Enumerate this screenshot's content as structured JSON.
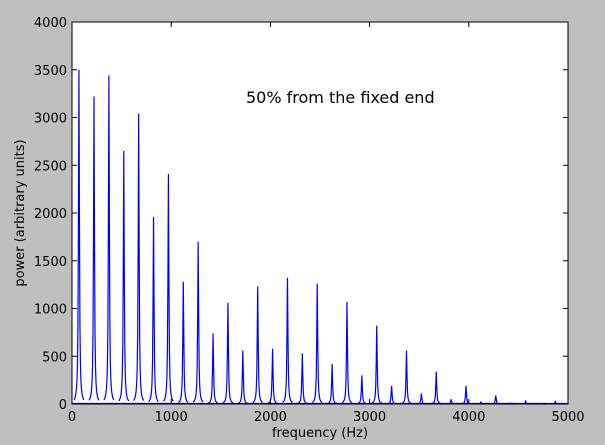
{
  "chart_data": {
    "type": "line",
    "xlabel": "frequency (Hz)",
    "ylabel": "power (arbitrary units)",
    "annotation": "50% from the fixed end",
    "xlim": [
      0,
      5000
    ],
    "ylim": [
      0,
      4000
    ],
    "xticks": [
      0,
      1000,
      2000,
      3000,
      4000,
      5000
    ],
    "yticks": [
      0,
      500,
      1000,
      1500,
      2000,
      2500,
      3000,
      3500,
      4000
    ],
    "grid": false,
    "line_color": "#0000ff",
    "peaks": [
      {
        "x": 70,
        "y": 3500
      },
      {
        "x": 222,
        "y": 3220
      },
      {
        "x": 372,
        "y": 3440
      },
      {
        "x": 522,
        "y": 2650
      },
      {
        "x": 672,
        "y": 3040
      },
      {
        "x": 822,
        "y": 1960
      },
      {
        "x": 972,
        "y": 2410
      },
      {
        "x": 1122,
        "y": 1280
      },
      {
        "x": 1272,
        "y": 1700
      },
      {
        "x": 1422,
        "y": 740
      },
      {
        "x": 1572,
        "y": 1060
      },
      {
        "x": 1722,
        "y": 560
      },
      {
        "x": 1872,
        "y": 1230
      },
      {
        "x": 2022,
        "y": 580
      },
      {
        "x": 2172,
        "y": 1320
      },
      {
        "x": 2322,
        "y": 530
      },
      {
        "x": 2472,
        "y": 1260
      },
      {
        "x": 2622,
        "y": 420
      },
      {
        "x": 2772,
        "y": 1070
      },
      {
        "x": 2922,
        "y": 300
      },
      {
        "x": 3072,
        "y": 820
      },
      {
        "x": 3222,
        "y": 190
      },
      {
        "x": 3372,
        "y": 560
      },
      {
        "x": 3522,
        "y": 110
      },
      {
        "x": 3672,
        "y": 340
      },
      {
        "x": 3822,
        "y": 50
      },
      {
        "x": 3972,
        "y": 190
      },
      {
        "x": 4122,
        "y": 20
      },
      {
        "x": 4272,
        "y": 90
      },
      {
        "x": 4422,
        "y": 10
      },
      {
        "x": 4572,
        "y": 30
      },
      {
        "x": 4722,
        "y": 5
      },
      {
        "x": 4872,
        "y": 25
      }
    ]
  }
}
